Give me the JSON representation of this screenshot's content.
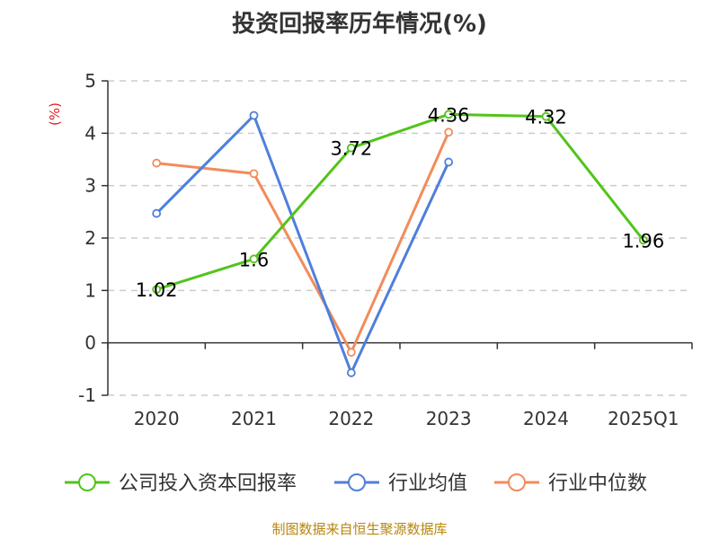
{
  "chart_data": {
    "type": "line",
    "title": "投资回报率历年情况(%)",
    "ylabel": "(%)",
    "categories": [
      "2020",
      "2021",
      "2022",
      "2023",
      "2024",
      "2025Q1"
    ],
    "ylim": [
      -1,
      5
    ],
    "yticks": [
      "-1",
      "0",
      "1",
      "2",
      "3",
      "4",
      "5"
    ],
    "grid": true,
    "legend_position": "bottom",
    "series": [
      {
        "name": "公司投入资本回报率",
        "color": "#52c41a",
        "values": [
          1.02,
          1.6,
          3.72,
          4.36,
          4.32,
          1.96
        ],
        "labels": [
          "1.02",
          "1.6",
          "3.72",
          "4.36",
          "4.32",
          "1.96"
        ]
      },
      {
        "name": "行业均值",
        "color": "#4f7fdb",
        "values": [
          2.47,
          4.34,
          -0.57,
          3.45,
          null,
          null
        ],
        "labels": []
      },
      {
        "name": "行业中位数",
        "color": "#f28c5a",
        "values": [
          3.43,
          3.23,
          -0.18,
          4.02,
          null,
          null
        ],
        "labels": []
      }
    ]
  },
  "source": "制图数据来自恒生聚源数据库"
}
